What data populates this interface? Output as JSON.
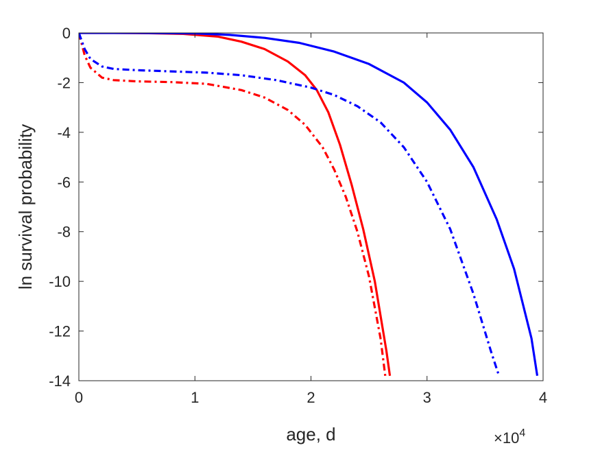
{
  "chart_data": {
    "type": "line",
    "xlabel": "age, d",
    "ylabel": "ln survival probability",
    "x_exponent_label": "×10",
    "x_exponent_power": "4",
    "xlim": [
      0,
      40000
    ],
    "ylim": [
      -14,
      0
    ],
    "x_ticks": [
      0,
      10000,
      20000,
      30000,
      40000
    ],
    "x_tick_labels": [
      "0",
      "1",
      "2",
      "3",
      "4"
    ],
    "y_ticks": [
      0,
      -2,
      -4,
      -6,
      -8,
      -10,
      -12,
      -14
    ],
    "y_tick_labels": [
      "0",
      "-2",
      "-4",
      "-6",
      "-8",
      "-10",
      "-12",
      "-14"
    ],
    "grid": false,
    "series": [
      {
        "color": "#ff0000",
        "style": "solid",
        "x": [
          0,
          3000,
          6000,
          9000,
          12000,
          14000,
          16000,
          18000,
          19500,
          20500,
          21500,
          22500,
          23500,
          24500,
          25500,
          26500,
          26800
        ],
        "y": [
          0,
          0,
          -0.01,
          -0.04,
          -0.15,
          -0.35,
          -0.65,
          -1.15,
          -1.7,
          -2.3,
          -3.2,
          -4.5,
          -6.1,
          -7.9,
          -10.0,
          -12.8,
          -13.8
        ]
      },
      {
        "color": "#ff0000",
        "style": "dashdot",
        "x": [
          0,
          500,
          1000,
          2000,
          3000,
          5000,
          8000,
          11000,
          14000,
          16000,
          18000,
          19500,
          21000,
          22000,
          23000,
          24000,
          25000,
          26000,
          26400
        ],
        "y": [
          0,
          -0.9,
          -1.4,
          -1.8,
          -1.9,
          -1.95,
          -1.98,
          -2.05,
          -2.3,
          -2.6,
          -3.1,
          -3.7,
          -4.6,
          -5.5,
          -6.6,
          -8.0,
          -9.8,
          -12.3,
          -13.8
        ]
      },
      {
        "color": "#0000ff",
        "style": "solid",
        "x": [
          0,
          5000,
          10000,
          13000,
          16000,
          19000,
          22000,
          25000,
          28000,
          30000,
          32000,
          34000,
          36000,
          37500,
          39000,
          39500
        ],
        "y": [
          0,
          0,
          -0.02,
          -0.08,
          -0.2,
          -0.4,
          -0.75,
          -1.25,
          -2.0,
          -2.8,
          -3.9,
          -5.4,
          -7.5,
          -9.5,
          -12.3,
          -13.8
        ]
      },
      {
        "color": "#0000ff",
        "style": "dashdot",
        "x": [
          0,
          500,
          1000,
          2000,
          3000,
          5000,
          8000,
          11000,
          14000,
          17000,
          20000,
          22000,
          24000,
          26000,
          28000,
          30000,
          32000,
          34000,
          35500,
          36200
        ],
        "y": [
          0,
          -0.65,
          -1.05,
          -1.35,
          -1.45,
          -1.5,
          -1.55,
          -1.6,
          -1.7,
          -1.9,
          -2.2,
          -2.5,
          -2.95,
          -3.6,
          -4.6,
          -6.0,
          -7.9,
          -10.5,
          -12.8,
          -13.8
        ]
      }
    ]
  }
}
